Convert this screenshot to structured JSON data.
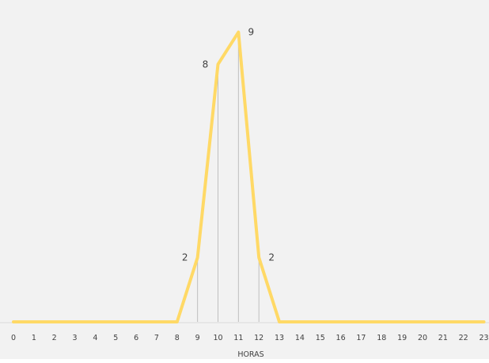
{
  "chart_data": {
    "type": "line",
    "title": "",
    "xlabel": "HORAS",
    "ylabel": "",
    "x": [
      0,
      1,
      2,
      3,
      4,
      5,
      6,
      7,
      8,
      9,
      10,
      11,
      12,
      13,
      14,
      15,
      16,
      17,
      18,
      19,
      20,
      21,
      22,
      23
    ],
    "x_tick_labels": [
      "0",
      "1",
      "2",
      "3",
      "4",
      "5",
      "6",
      "7",
      "8",
      "9",
      "10",
      "11",
      "12",
      "13",
      "14",
      "15",
      "16",
      "17",
      "18",
      "19",
      "20",
      "21",
      "22",
      "23"
    ],
    "series": [
      {
        "values": [
          0,
          0,
          0,
          0,
          0,
          0,
          0,
          0,
          0,
          2,
          8,
          9,
          2,
          0,
          0,
          0,
          0,
          0,
          0,
          0,
          0,
          0,
          0,
          0
        ]
      }
    ],
    "data_labels": [
      {
        "x": 9,
        "text": "2",
        "side": "left"
      },
      {
        "x": 10,
        "text": "8",
        "side": "left"
      },
      {
        "x": 11,
        "text": "9",
        "side": "right"
      },
      {
        "x": 12,
        "text": "2",
        "side": "right"
      }
    ],
    "drop_lines_at": [
      9,
      10,
      11,
      12
    ],
    "ylim": [
      0,
      9.9
    ],
    "grid": false,
    "legend": "none",
    "colors": {
      "line": "#FFD966",
      "plot_background": "#F2F2F2",
      "drop_line": "#BFBFBF",
      "axis_line": "#D9D9D9",
      "text": "#404040"
    }
  }
}
